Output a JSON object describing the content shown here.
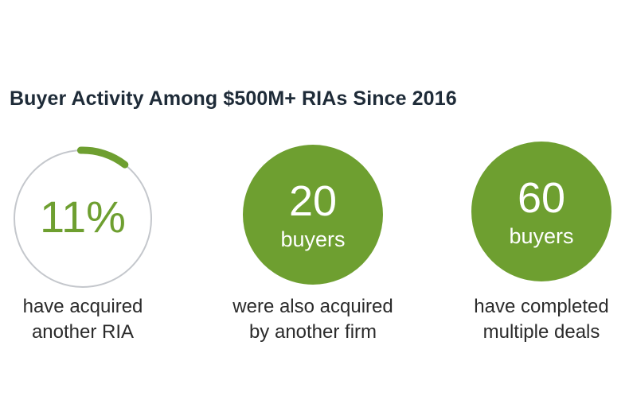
{
  "title": "Buyer Activity Among $500M+ RIAs Since 2016",
  "colors": {
    "accent": "#6e9f30",
    "ring_track": "#c4c7cc",
    "text": "#2b2b2b"
  },
  "stats": [
    {
      "value": "11%",
      "progress_percent": 11,
      "caption_line1": "have acquired",
      "caption_line2": "another RIA"
    },
    {
      "value": "20",
      "unit": "buyers",
      "caption_line1": "were also acquired",
      "caption_line2": "by another firm"
    },
    {
      "value": "60",
      "unit": "buyers",
      "caption_line1": "have completed",
      "caption_line2": "multiple deals"
    }
  ]
}
